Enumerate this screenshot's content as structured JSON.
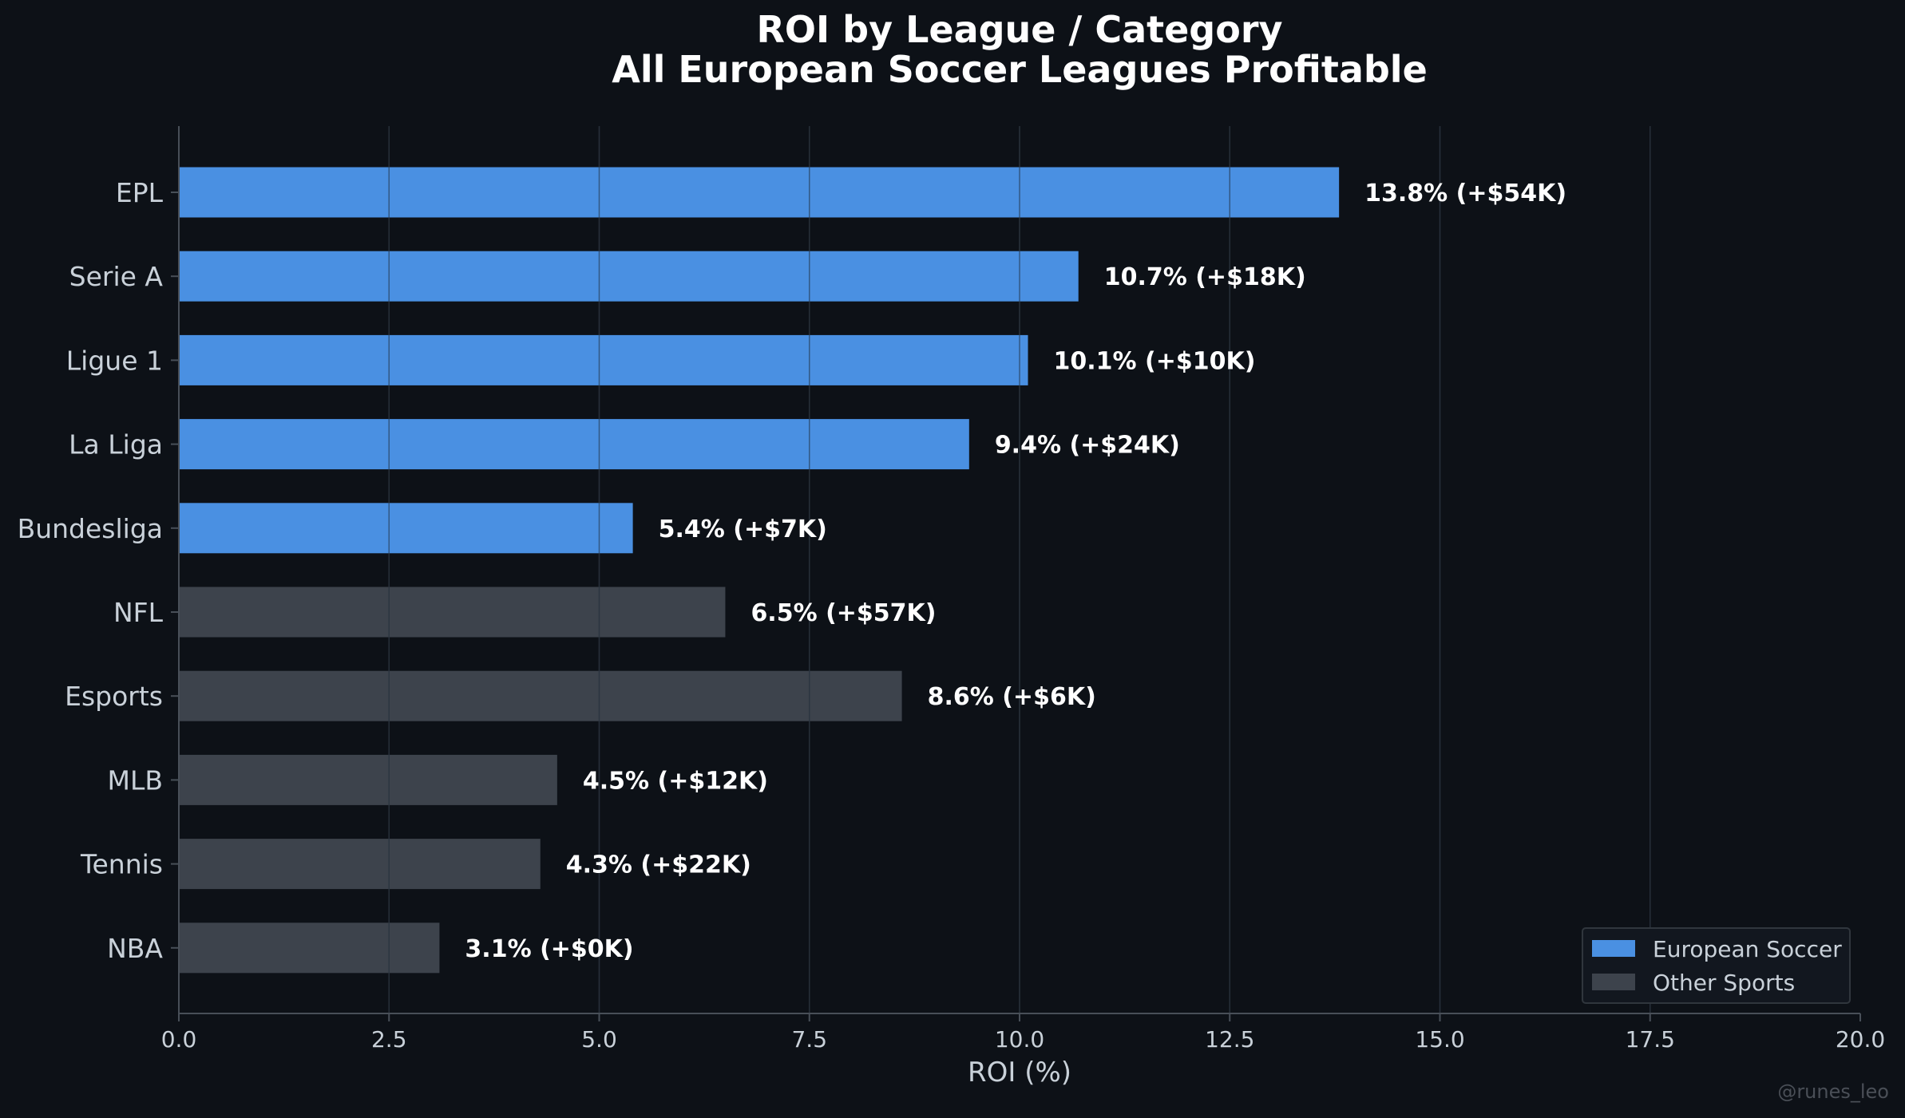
{
  "chart_data": {
    "type": "bar",
    "orientation": "horizontal",
    "title_lines": [
      "ROI by League / Category",
      "All European Soccer Leagues Profitable"
    ],
    "xlabel": "ROI (%)",
    "ylabel": "",
    "xlim": [
      0,
      20
    ],
    "x_ticks": [
      "0.0",
      "2.5",
      "5.0",
      "7.5",
      "10.0",
      "12.5",
      "15.0",
      "17.5",
      "20.0"
    ],
    "grid": "vertical",
    "legend_position": "lower-right",
    "categories": [
      "EPL",
      "Serie A",
      "Ligue 1",
      "La Liga",
      "Bundesliga",
      "NFL",
      "Esports",
      "MLB",
      "Tennis",
      "NBA"
    ],
    "values": [
      13.8,
      10.7,
      10.1,
      9.4,
      5.4,
      6.5,
      8.6,
      4.5,
      4.3,
      3.1
    ],
    "groups": [
      "European Soccer",
      "European Soccer",
      "European Soccer",
      "European Soccer",
      "European Soccer",
      "Other Sports",
      "Other Sports",
      "Other Sports",
      "Other Sports",
      "Other Sports"
    ],
    "data_labels": [
      "13.8%  (+$54K)",
      "10.7%  (+$18K)",
      "10.1%  (+$10K)",
      "9.4%  (+$24K)",
      "5.4%  (+$7K)",
      "6.5%  (+$57K)",
      "8.6%  (+$6K)",
      "4.5%  (+$12K)",
      "4.3%  (+$22K)",
      "3.1%  (+$0K)"
    ],
    "legend": [
      {
        "name": "European Soccer",
        "color": "#4a90e2"
      },
      {
        "name": "Other Sports",
        "color": "#3d434c"
      }
    ]
  },
  "watermark": "@runes_leo",
  "colors": {
    "background": "#0d1117",
    "grid": "#30363d",
    "axis": "#484f58"
  }
}
